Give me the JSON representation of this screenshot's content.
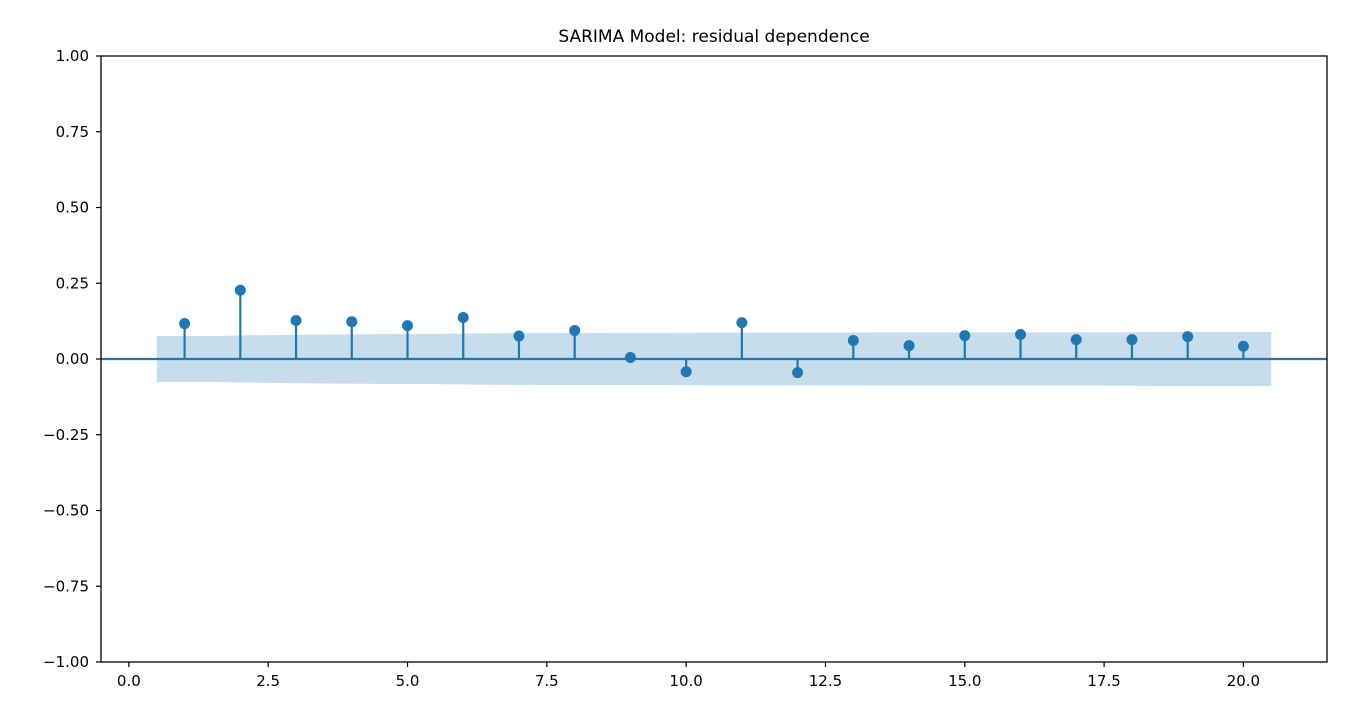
{
  "chart_data": {
    "type": "stem",
    "title": "SARIMA Model: residual dependence",
    "xlabel": "",
    "ylabel": "",
    "xlim": [
      -0.5,
      21.5
    ],
    "ylim": [
      -1.0,
      1.0
    ],
    "x_ticks": [
      0.0,
      2.5,
      5.0,
      7.5,
      10.0,
      12.5,
      15.0,
      17.5,
      20.0
    ],
    "x_tick_labels": [
      "0.0",
      "2.5",
      "5.0",
      "7.5",
      "10.0",
      "12.5",
      "15.0",
      "17.5",
      "20.0"
    ],
    "y_ticks": [
      1.0,
      0.75,
      0.5,
      0.25,
      0.0,
      -0.25,
      -0.5,
      -0.75,
      -1.0
    ],
    "y_tick_labels": [
      "1.00",
      "0.75",
      "0.50",
      "0.25",
      "0.00",
      "−0.25",
      "−0.50",
      "−0.75",
      "−1.00"
    ],
    "grid": false,
    "baseline": 0,
    "lags": [
      1,
      2,
      3,
      4,
      5,
      6,
      7,
      8,
      9,
      10,
      11,
      12,
      13,
      14,
      15,
      16,
      17,
      18,
      19,
      20
    ],
    "values": [
      0.117,
      0.227,
      0.127,
      0.123,
      0.11,
      0.137,
      0.076,
      0.094,
      0.005,
      -0.042,
      0.12,
      -0.045,
      0.061,
      0.044,
      0.077,
      0.081,
      0.064,
      0.064,
      0.074,
      0.042
    ],
    "confidence_band": {
      "x": [
        0.5,
        1.5,
        2.5,
        3.5,
        4.5,
        5.5,
        6.5,
        7.5,
        8.5,
        9.5,
        10.5,
        11.5,
        12.5,
        13.5,
        14.5,
        15.5,
        16.5,
        17.5,
        18.5,
        19.5,
        20.5
      ],
      "upper": [
        0.076,
        0.076,
        0.079,
        0.081,
        0.082,
        0.083,
        0.085,
        0.086,
        0.086,
        0.086,
        0.087,
        0.087,
        0.087,
        0.088,
        0.088,
        0.088,
        0.088,
        0.088,
        0.089,
        0.089,
        0.089
      ],
      "lower": [
        -0.076,
        -0.076,
        -0.079,
        -0.081,
        -0.082,
        -0.083,
        -0.085,
        -0.086,
        -0.086,
        -0.086,
        -0.087,
        -0.087,
        -0.087,
        -0.088,
        -0.088,
        -0.088,
        -0.088,
        -0.088,
        -0.089,
        -0.089,
        -0.089
      ]
    },
    "colors": {
      "marker": "#1f77b4",
      "band": "#1f77b4",
      "axis": "#000000"
    }
  }
}
